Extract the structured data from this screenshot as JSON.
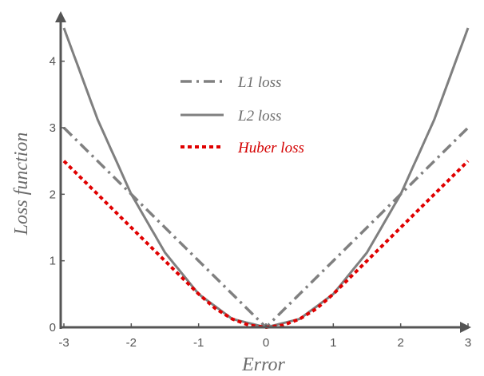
{
  "chart_data": {
    "type": "line",
    "xlabel": "Error",
    "ylabel": "Loss function",
    "xlim": [
      -3,
      3
    ],
    "ylim": [
      0,
      4.5
    ],
    "grid": false,
    "legend_position": "top-center",
    "x_ticks": [
      "-3",
      "-2",
      "-1",
      "0",
      "1",
      "2",
      "3"
    ],
    "y_ticks": [
      "0",
      "1",
      "2",
      "3",
      "4"
    ],
    "series": [
      {
        "name": "L1 loss",
        "color": "#808080",
        "style": "dashdot",
        "x": [
          -3,
          -2,
          -1,
          0,
          1,
          2,
          3
        ],
        "y": [
          3,
          2,
          1,
          0,
          1,
          2,
          3
        ]
      },
      {
        "name": "L2 loss",
        "color": "#7f7f7f",
        "style": "solid",
        "x": [
          -3,
          -2.5,
          -2,
          -1.5,
          -1,
          -0.5,
          0,
          0.5,
          1,
          1.5,
          2,
          2.5,
          3
        ],
        "y": [
          4.5,
          3.125,
          2,
          1.125,
          0.5,
          0.125,
          0,
          0.125,
          0.5,
          1.125,
          2,
          3.125,
          4.5
        ]
      },
      {
        "name": "Huber loss",
        "color": "#e00000",
        "style": "dotted",
        "x": [
          -3,
          -2.5,
          -2,
          -1.5,
          -1,
          -0.75,
          -0.5,
          -0.25,
          0,
          0.25,
          0.5,
          0.75,
          1,
          1.5,
          2,
          2.5,
          3
        ],
        "y": [
          2.5,
          2,
          1.5,
          1,
          0.5,
          0.281,
          0.125,
          0.031,
          0,
          0.031,
          0.125,
          0.281,
          0.5,
          1,
          1.5,
          2,
          2.5
        ]
      }
    ]
  }
}
